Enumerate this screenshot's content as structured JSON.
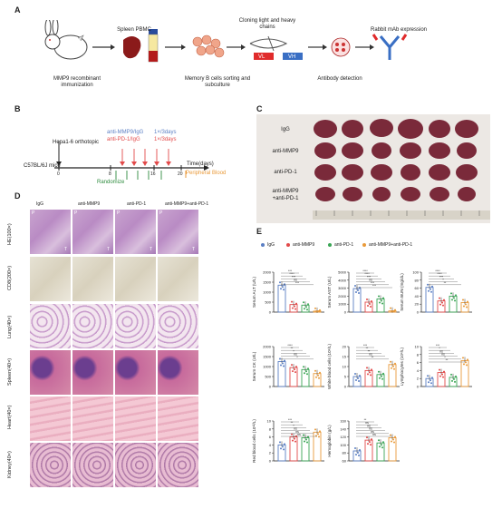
{
  "panels": {
    "a": "A",
    "b": "B",
    "c": "C",
    "d": "D",
    "e": "E"
  },
  "workflow": {
    "step1": "MMP9 recombinant immunization",
    "step2": "Spleen PBMC",
    "step3": "Memory B cells sorting and subculture",
    "step4": "Cloning light and heavy chains",
    "vl": "VL",
    "vh": "VH",
    "step5": "Antibody detection",
    "step6": "Rabbit mAb expression"
  },
  "timeline": {
    "mice": "C57BL/6J mice",
    "hepa": "Hepa1-6 orthotopic",
    "tx1": "anti-MMP9/IgG",
    "tx2": "anti-PD-1/IgG",
    "freq1": "1×/3days",
    "freq2": "1×/3days",
    "time": "Time(days)",
    "randomize": "Randomize",
    "blood": "Peripheral Blood",
    "ticks": [
      "0",
      "8",
      "16",
      "20"
    ],
    "colors": {
      "mmp9": "#5b7fc4",
      "pd1": "#e24a4a",
      "green": "#2e8b3e",
      "orange": "#e99a3a"
    }
  },
  "tumors": {
    "rows": [
      "IgG",
      "anti-MMP9",
      "anti-PD-1",
      "anti-MMP9\n+anti-PD-1"
    ],
    "row4a": "anti-MMP9",
    "row4b": "+anti-PD-1"
  },
  "histology": {
    "cols": [
      "IgG",
      "anti-MMP9",
      "anti-PD-1",
      "anti-MMP9+anti-PD-1"
    ],
    "rows": [
      "HE(100×)",
      "CD8(200×)",
      "Lung(40×)",
      "Spleen(40×)",
      "Heart(40×)",
      "Kidney(40×)"
    ],
    "pt": [
      "P",
      "T"
    ]
  },
  "legend": {
    "items": [
      "IgG",
      "anti-MMP9",
      "anti-PD-1",
      "anti-MMP9+anti-PD-1"
    ],
    "colors": [
      "#5b7fc4",
      "#e24a4a",
      "#3aa655",
      "#e99a3a"
    ]
  },
  "chart_data": [
    {
      "type": "bar",
      "ylabel": "Serum ALT (U/L)",
      "ylim": [
        0,
        2000
      ],
      "yticks": [
        "0",
        "500",
        "1000",
        "1500",
        "2000"
      ],
      "values": [
        1350,
        380,
        350,
        50
      ],
      "sig": [
        "***",
        "****",
        "***",
        "ns",
        "***"
      ]
    },
    {
      "type": "bar",
      "ylabel": "Serum AST (U/L)",
      "ylim": [
        0,
        5000
      ],
      "yticks": [
        "0",
        "1000",
        "2000",
        "3000",
        "4000",
        "5000"
      ],
      "values": [
        2950,
        1250,
        1650,
        150
      ],
      "sig": [
        "****",
        "****",
        "***",
        "ns",
        "***",
        "***"
      ]
    },
    {
      "type": "bar",
      "ylabel": "Serum BUN (mg/dL)",
      "ylim": [
        0,
        100
      ],
      "yticks": [
        "0",
        "20",
        "40",
        "60",
        "80",
        "100"
      ],
      "values": [
        62,
        28,
        40,
        24
      ],
      "sig": [
        "****",
        "****",
        "***",
        "*",
        "**"
      ]
    },
    {
      "type": "bar",
      "ylabel": "Serum CK (U/L)",
      "ylim": [
        0,
        2000
      ],
      "yticks": [
        "0",
        "500",
        "1000",
        "1500",
        "2000"
      ],
      "values": [
        1250,
        950,
        850,
        650
      ],
      "sig": [
        "****",
        "**",
        "*",
        "ns",
        "*"
      ]
    },
    {
      "type": "bar",
      "ylabel": "White blood cells (10⁹/L)",
      "ylim": [
        0,
        20
      ],
      "yticks": [
        "0",
        "5",
        "10",
        "15",
        "20"
      ],
      "values": [
        5,
        8,
        6,
        11
      ],
      "sig": [
        "***",
        "**",
        "**",
        "ns",
        "**"
      ]
    },
    {
      "type": "bar",
      "ylabel": "Lymphocytes (10⁹/L)",
      "ylim": [
        0,
        10
      ],
      "yticks": [
        "0",
        "2",
        "4",
        "6",
        "8",
        "10"
      ],
      "values": [
        2,
        3.5,
        2.3,
        6.5
      ],
      "sig": [
        "***",
        "*",
        "ns",
        "ns",
        "*",
        "**"
      ]
    },
    {
      "type": "bar",
      "ylabel": "Red blood cells (10¹²/L)",
      "ylim": [
        0,
        10
      ],
      "yticks": [
        "0",
        "2",
        "4",
        "6",
        "8",
        "10"
      ],
      "values": [
        4,
        6,
        5.8,
        7.2
      ],
      "sig": [
        "***",
        "**",
        "*",
        "ns",
        "ns",
        "ns"
      ]
    },
    {
      "type": "bar",
      "ylabel": "Hemoglobin (g/L)",
      "ylim": [
        60,
        160
      ],
      "yticks": [
        "60",
        "80",
        "100",
        "120",
        "140",
        "160"
      ],
      "values": [
        85,
        112,
        105,
        118
      ],
      "sig": [
        "**",
        "ns",
        "ns",
        "ns",
        "ns",
        "ns"
      ]
    }
  ]
}
